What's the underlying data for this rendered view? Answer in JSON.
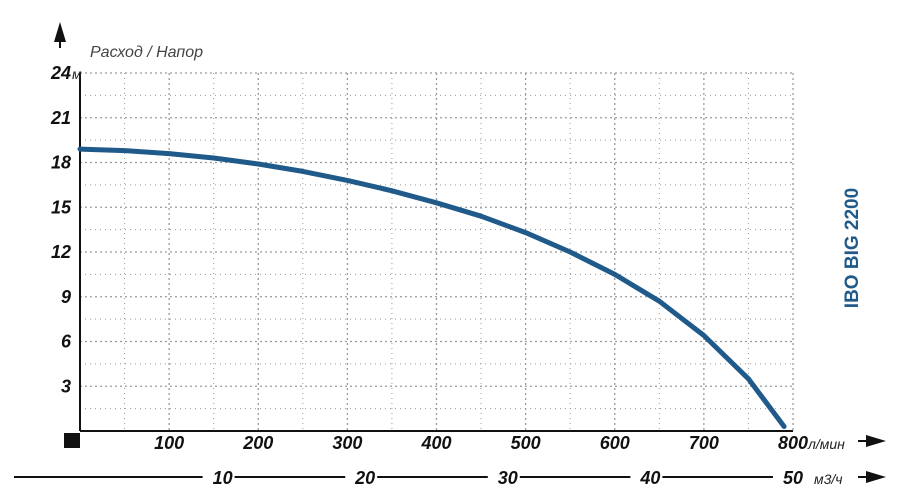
{
  "chart_data": {
    "type": "line",
    "title": "IBO BIG 2200",
    "axis_caption": "Расход / Напор",
    "y_axis": {
      "unit": "м",
      "ticks": [
        3,
        6,
        9,
        12,
        15,
        18,
        21,
        24
      ],
      "ylim": [
        0,
        24
      ]
    },
    "x_axis_flow": {
      "unit": "л/мин",
      "ticks": [
        100,
        200,
        300,
        400,
        500,
        600,
        700,
        800
      ],
      "xlim": [
        0,
        800
      ]
    },
    "x_axis_volume": {
      "unit": "м3/ч",
      "ticks": [
        10,
        20,
        30,
        40,
        50
      ],
      "xlim": [
        0,
        50
      ]
    },
    "grid": true,
    "series": [
      {
        "x": [
          0,
          50,
          100,
          150,
          200,
          250,
          300,
          350,
          400,
          450,
          500,
          550,
          600,
          650,
          700,
          750,
          790
        ],
        "y": [
          18.9,
          18.8,
          18.6,
          18.3,
          17.9,
          17.4,
          16.8,
          16.1,
          15.3,
          14.4,
          13.3,
          12.0,
          10.5,
          8.7,
          6.4,
          3.5,
          0.3
        ]
      }
    ],
    "colors": {
      "curve": "#1f5a8a",
      "grid": "#9a9a9a",
      "axis": "#111111",
      "title": "#1f5a8a"
    }
  }
}
